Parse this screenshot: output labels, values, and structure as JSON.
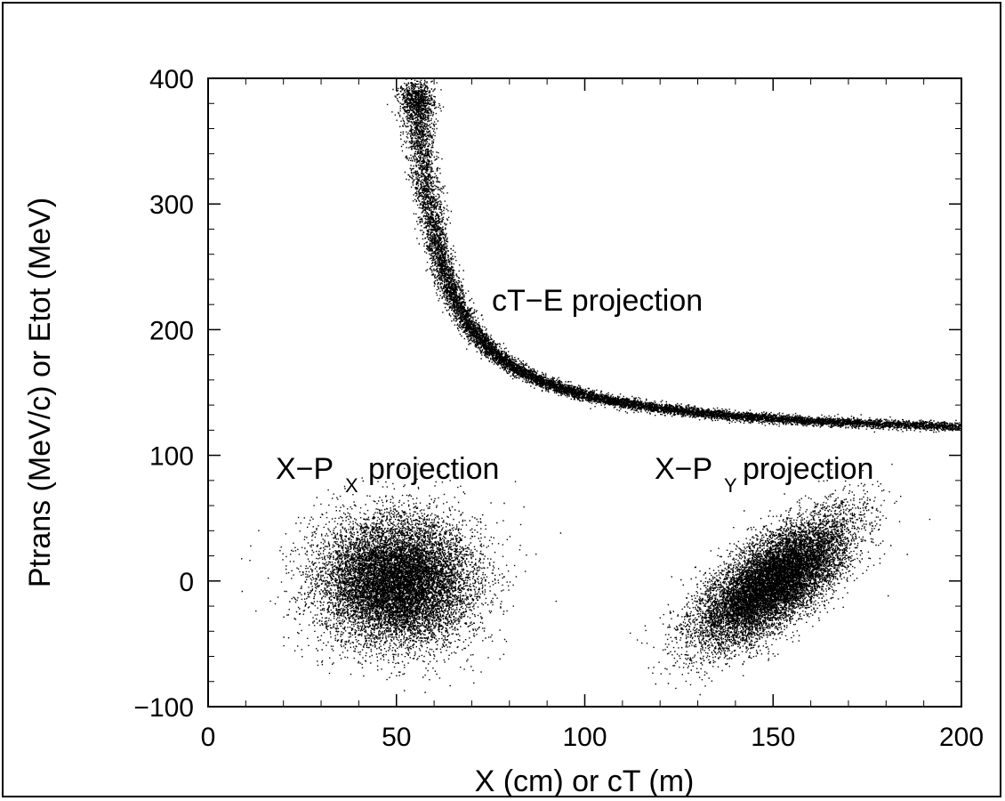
{
  "chart_data": {
    "type": "scatter",
    "xlabel": "X (cm) or cT (m)",
    "ylabel": "Ptrans (MeV/c) or Etot (MeV)",
    "xlim": [
      0,
      200
    ],
    "ylim": [
      -100,
      400
    ],
    "x_ticks": [
      0,
      50,
      100,
      150,
      200
    ],
    "y_ticks": [
      -100,
      0,
      100,
      200,
      300,
      400
    ],
    "grid": false,
    "marker_color": "#000000",
    "annotations": {
      "ct_e": "cT−E projection",
      "x_px": {
        "main": "X−P",
        "sub": "X",
        "rest": "projection"
      },
      "x_py": {
        "main": "X−P",
        "sub": "Y",
        "rest": "projection"
      }
    },
    "series": [
      {
        "kind": "cT-E projection",
        "curve": "E = 110 + 2000 / (cT - 48)",
        "x_range": [
          55,
          200
        ],
        "y_range": [
          110,
          400
        ],
        "n_points": 12000
      },
      {
        "kind": "X-Px projection",
        "center": [
          50,
          0
        ],
        "spread": [
          10,
          25
        ],
        "correlation": 0.0,
        "n_points": 12000
      },
      {
        "kind": "X-Py projection",
        "center": [
          150,
          0
        ],
        "spread": [
          10,
          25
        ],
        "correlation": 0.7,
        "n_points": 12000
      }
    ]
  }
}
